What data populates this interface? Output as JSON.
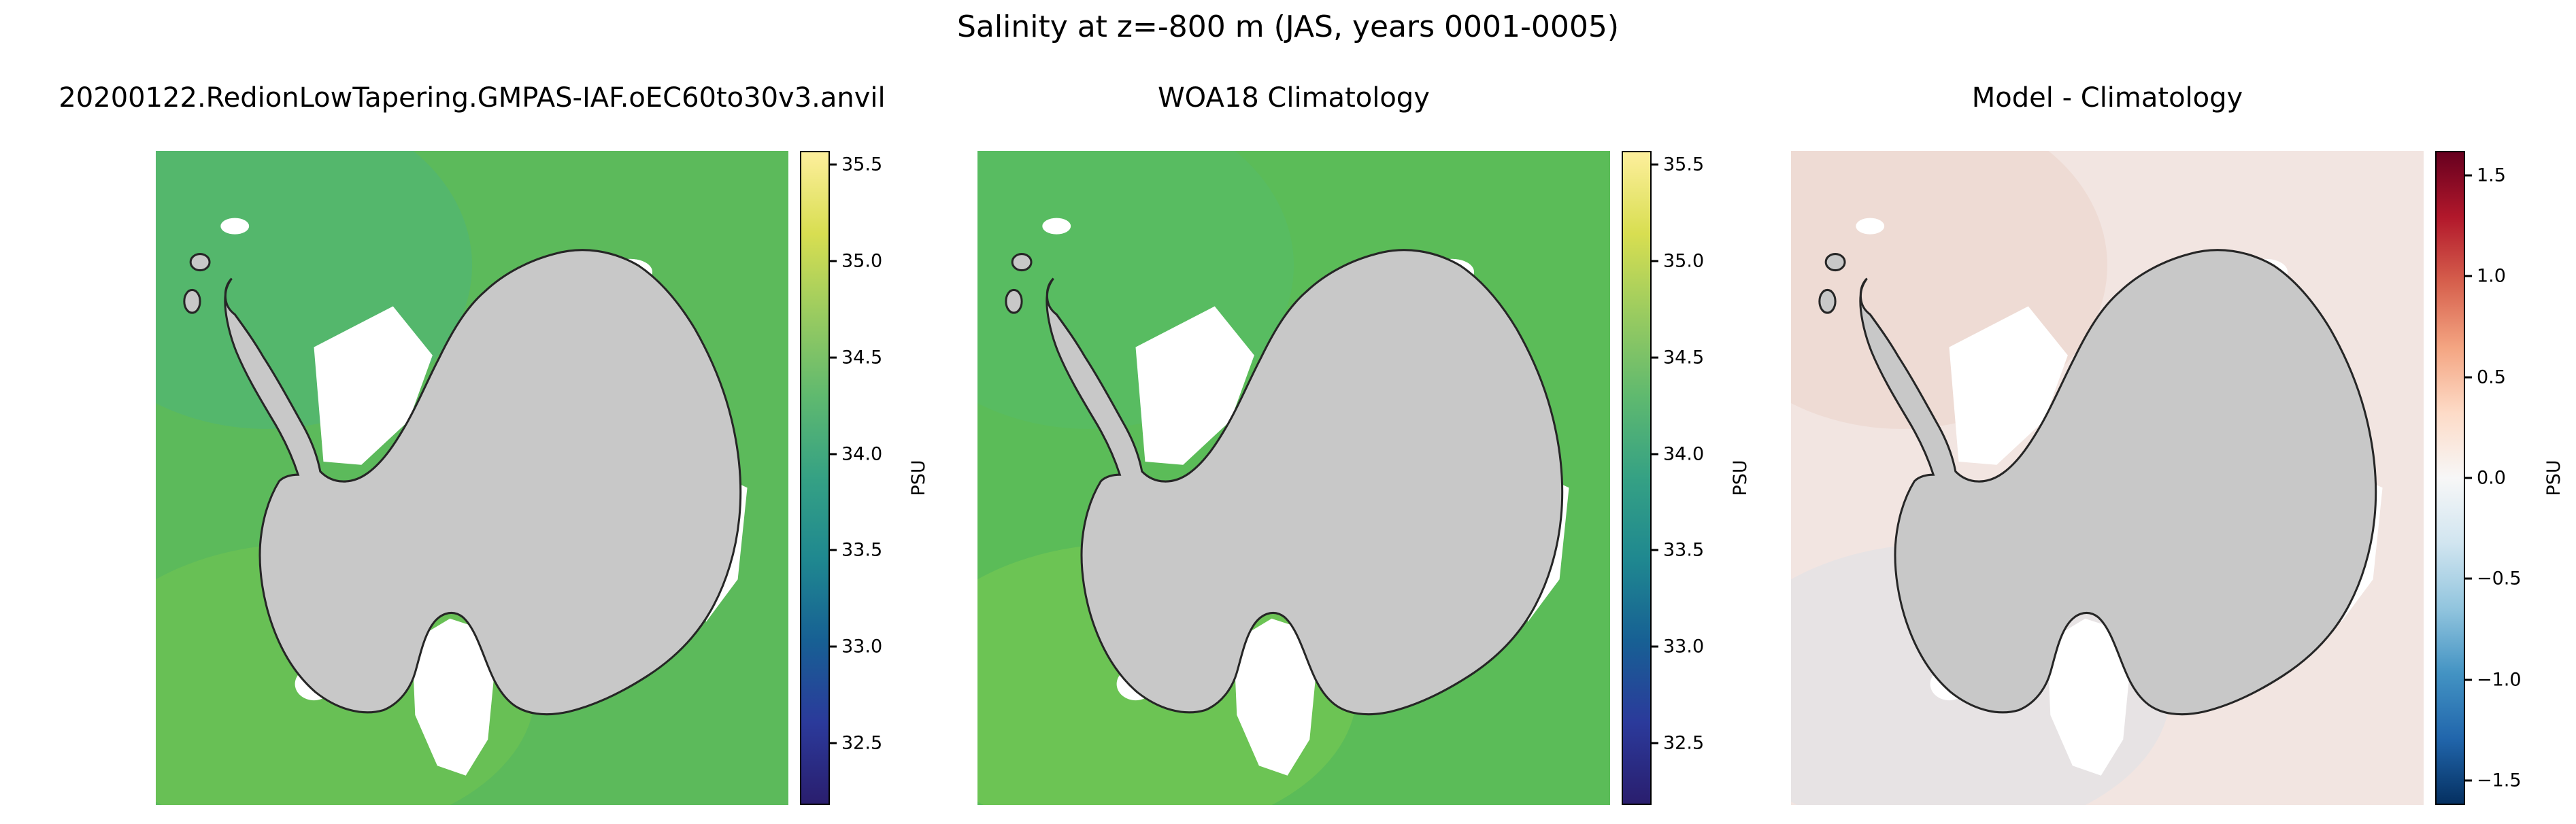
{
  "figure": {
    "title": "Salinity at z=-800 m (JAS, years 0001-0005)"
  },
  "panels": [
    {
      "title": "20200122.RedionLowTapering.GMPAS-IAF.oEC60to30v3.anvil",
      "ocean_color": "#5cba5b",
      "blob1_color": "#4bb386",
      "blob2_color": "#79c94f",
      "land_color": "#c8c8c8",
      "colorbar": {
        "unit": "PSU",
        "min": 32.18,
        "max": 35.57,
        "ticks": [
          35.5,
          35.0,
          34.5,
          34.0,
          33.5,
          33.0,
          32.5
        ],
        "tick_labels": [
          "35.5",
          "35.0",
          "34.5",
          "34.0",
          "33.5",
          "33.0",
          "32.5"
        ],
        "stops": [
          "#fdef9c",
          "#d8de51",
          "#99cb60",
          "#5fb96f",
          "#35a184",
          "#1f8890",
          "#176094",
          "#2b3a9b",
          "#2a1e6e"
        ]
      }
    },
    {
      "title": "WOA18 Climatology",
      "ocean_color": "#5bbc58",
      "blob1_color": "#56bd6e",
      "blob2_color": "#86d04e",
      "land_color": "#c8c8c8",
      "colorbar": {
        "unit": "PSU",
        "min": 32.18,
        "max": 35.57,
        "ticks": [
          35.5,
          35.0,
          34.5,
          34.0,
          33.5,
          33.0,
          32.5
        ],
        "tick_labels": [
          "35.5",
          "35.0",
          "34.5",
          "34.0",
          "33.5",
          "33.0",
          "32.5"
        ],
        "stops": [
          "#fdef9c",
          "#d8de51",
          "#99cb60",
          "#5fb96f",
          "#35a184",
          "#1f8890",
          "#176094",
          "#2b3a9b",
          "#2a1e6e"
        ]
      }
    },
    {
      "title": "Model - Climatology",
      "ocean_color": "#f2e5e1",
      "blob1_color": "#e9cec4",
      "blob2_color": "#d8e1e9",
      "land_color": "#c8c8c8",
      "colorbar": {
        "unit": "PSU",
        "min": -1.62,
        "max": 1.62,
        "ticks": [
          1.5,
          1.0,
          0.5,
          0.0,
          -0.5,
          -1.0,
          -1.5
        ],
        "tick_labels": [
          "1.5",
          "1.0",
          "0.5",
          "0.0",
          "−0.5",
          "−1.0",
          "−1.5"
        ],
        "stops": [
          "#67001f",
          "#b2182b",
          "#d6604d",
          "#f4a582",
          "#fddbc7",
          "#f7f7f7",
          "#d1e5f0",
          "#92c5de",
          "#4393c3",
          "#2166ac",
          "#053061"
        ]
      }
    }
  ],
  "chart_data": [
    {
      "type": "heatmap",
      "subtype": "south-polar-stereographic-map",
      "title": "20200122.RedionLowTapering.GMPAS-IAF.oEC60to30v3.anvil",
      "variable": "Salinity at z=-800 m",
      "season": "JAS",
      "years": "0001-0005",
      "region": "Southern Ocean around Antarctica",
      "colormap": "haline (dark purple-blue -> teal -> green -> pale yellow)",
      "colorbar_label": "PSU",
      "colorbar_ticks": [
        35.5,
        35.0,
        34.5,
        34.0,
        33.5,
        33.0,
        32.5
      ],
      "colorbar_range": [
        32.2,
        35.6
      ],
      "field_summary": "Open-ocean salinity nearly uniform, approximately 34.5-34.7 PSU (green), with a slight teal patch in the upper-left; Antarctic continent masked light gray with black coastline; ice-shelf and shallow-shelf regions (Weddell, Ross, coastal fringes) white (no data at this depth)",
      "legend_position": "right colorbar"
    },
    {
      "type": "heatmap",
      "subtype": "south-polar-stereographic-map",
      "title": "WOA18 Climatology",
      "variable": "Salinity at z=-800 m",
      "season": "JAS",
      "region": "Southern Ocean around Antarctica",
      "colormap": "haline (dark purple-blue -> teal -> green -> pale yellow)",
      "colorbar_label": "PSU",
      "colorbar_ticks": [
        35.5,
        35.0,
        34.5,
        34.0,
        33.5,
        33.0,
        32.5
      ],
      "colorbar_range": [
        32.2,
        35.6
      ],
      "field_summary": "Observed climatological salinity nearly uniform ~34.5-34.7 PSU (green) with slightly brighter green patches near the bottom-left coast; continent gray; ice-shelf areas white",
      "legend_position": "right colorbar"
    },
    {
      "type": "heatmap",
      "subtype": "south-polar-stereographic-map",
      "title": "Model - Climatology",
      "variable": "Salinity difference at z=-800 m",
      "season": "JAS",
      "region": "Southern Ocean around Antarctica",
      "colormap": "RdBu reversed diverging (dark red positive, white zero, dark blue negative)",
      "colorbar_label": "PSU",
      "colorbar_ticks": [
        1.5,
        1.0,
        0.5,
        0.0,
        -0.5,
        -1.0,
        -1.5
      ],
      "colorbar_range": [
        -1.6,
        1.6
      ],
      "field_summary": "Model-minus-climatology differences mostly near zero: weak positive bias (very pale pink, roughly +0.05 to +0.2 PSU) over most of the domain, with a faint negative (pale blue-gray) patch toward the lower left; continent gray, ice-shelf areas white",
      "legend_position": "right colorbar"
    }
  ]
}
